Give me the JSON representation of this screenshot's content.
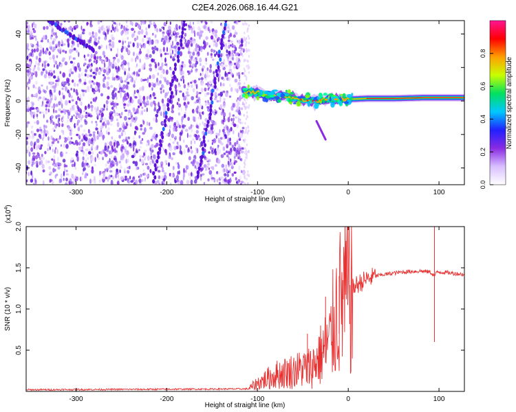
{
  "title": "C2E4.2026.068.16.44.G21",
  "chart_data": [
    {
      "type": "heatmap",
      "xlabel": "Height of straight line (km)",
      "ylabel": "Frequency (Hz)",
      "xlim": [
        -355,
        128
      ],
      "ylim": [
        -50,
        48
      ],
      "x_ticks": [
        -300,
        -200,
        -100,
        0,
        100
      ],
      "y_ticks": [
        -40,
        -20,
        0,
        20,
        40
      ],
      "noise_region_x": [
        -355,
        -115
      ],
      "noise_streaks": [
        {
          "x": [
            -215,
            -180
          ],
          "y": [
            -48,
            48
          ]
        },
        {
          "x": [
            -165,
            -135
          ],
          "y": [
            -45,
            48
          ]
        },
        {
          "x": [
            -280,
            -330
          ],
          "y": [
            30,
            48
          ]
        }
      ],
      "signal_band": [
        {
          "x": -115,
          "y": 6
        },
        {
          "x": -100,
          "y": 5
        },
        {
          "x": -85,
          "y": 3
        },
        {
          "x": -70,
          "y": 3
        },
        {
          "x": -55,
          "y": 1
        },
        {
          "x": -40,
          "y": 0
        },
        {
          "x": -20,
          "y": 1
        },
        {
          "x": 0,
          "y": 1
        },
        {
          "x": 20,
          "y": 1.5
        },
        {
          "x": 50,
          "y": 1.5
        },
        {
          "x": 85,
          "y": 2
        },
        {
          "x": 95,
          "y": 2
        },
        {
          "x": 128,
          "y": 2
        }
      ],
      "signal_tail": {
        "x": [
          -35,
          -25
        ],
        "y": [
          -12,
          -23
        ]
      },
      "colorbar": {
        "label": "Normalized spectral amplitude",
        "range": [
          0,
          1
        ],
        "ticks": [
          "0.0",
          "0.2",
          "0.4",
          "0.6",
          "0.8"
        ],
        "colors": [
          "#ffffff",
          "#d9bfff",
          "#8a2be2",
          "#2020ff",
          "#00c8ff",
          "#00e060",
          "#c8ff00",
          "#ffa000",
          "#ff0000",
          "#ff1493"
        ]
      }
    },
    {
      "type": "line",
      "xlabel": "Height of straight line (km)",
      "ylabel": "SNR (10 * v/v)",
      "y_multiplier": "(x10",
      "y_multiplier_exp": "4",
      "y_multiplier_close": ")",
      "xlim": [
        -355,
        128
      ],
      "ylim": [
        0,
        2.0
      ],
      "x_ticks": [
        -300,
        -200,
        -100,
        0,
        100
      ],
      "y_ticks": [
        "0.5",
        "1.0",
        "1.5",
        "2.0"
      ],
      "color": "#e83030",
      "series": [
        {
          "name": "SNR",
          "x": [
            -355,
            -110,
            -100,
            -80,
            -60,
            -40,
            -30,
            -20,
            -15,
            -10,
            -5,
            0,
            10,
            20,
            30,
            40,
            60,
            80,
            90,
            95,
            98,
            100,
            110,
            128
          ],
          "y": [
            0.02,
            0.03,
            0.1,
            0.2,
            0.25,
            0.3,
            0.45,
            0.6,
            0.9,
            1.05,
            1.15,
            1.2,
            1.3,
            1.36,
            1.4,
            1.42,
            1.45,
            1.46,
            1.45,
            1.4,
            1.45,
            1.45,
            1.44,
            1.42
          ]
        }
      ],
      "spikes": [
        {
          "x": 95,
          "y_top": 2.0,
          "y_bottom": 0.6
        },
        {
          "x": -10,
          "y_top": 1.4,
          "y_bottom": 0.7
        },
        {
          "x": -25,
          "y_top": 1.15,
          "y_bottom": 0.35
        },
        {
          "x": -45,
          "y_top": 0.7,
          "y_bottom": 0.1
        }
      ]
    }
  ]
}
